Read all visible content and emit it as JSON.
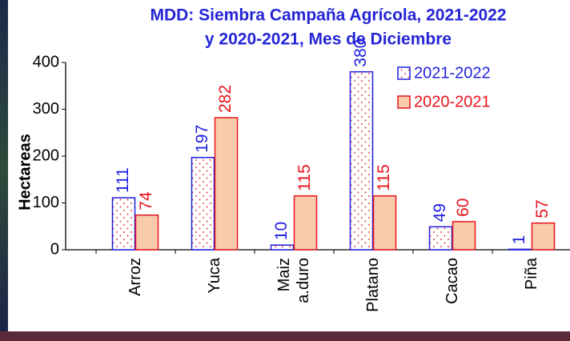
{
  "chart_data": {
    "type": "bar",
    "title": [
      "MDD: Siembra Campaña Agrícola, 2021-2022",
      "y 2020-2021, Mes de Diciembre"
    ],
    "y_label": "Hectareas",
    "categories": [
      "Arroz",
      "Yuca",
      [
        "Maiz",
        "a.duro"
      ],
      "Platano",
      "Cacao",
      "Piña"
    ],
    "series": [
      {
        "name": "2021-2022",
        "color": "#1f1fe0",
        "values": [
          111,
          197,
          10,
          380,
          49,
          1
        ]
      },
      {
        "name": "2020-2021",
        "color": "#e8141c",
        "values": [
          74,
          282,
          115,
          115,
          60,
          57
        ]
      }
    ],
    "ylim": [
      0,
      400
    ],
    "yticks": [
      0,
      100,
      200,
      300,
      400
    ],
    "grid": false,
    "legend": "top-right"
  }
}
